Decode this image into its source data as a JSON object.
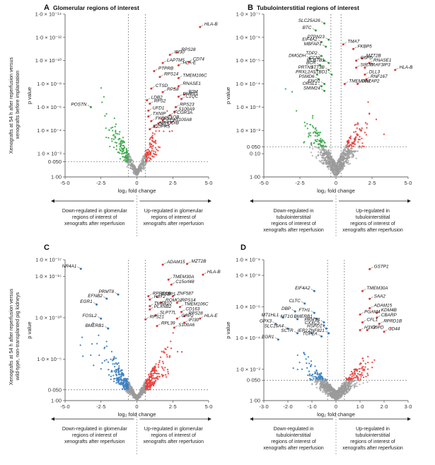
{
  "row_labels": {
    "top": [
      "Xenografts at 54 h after reperfusion versus",
      "xenografts before implantation"
    ],
    "bottom": [
      "Xenografts at 54 h after reperfusion versus",
      "wild-type, non-transplanted pig kidneys"
    ]
  },
  "colors": {
    "down": "#3aa84a",
    "up": "#e8403c",
    "down_blue": "#3b7fc0",
    "ns": "#9a9a9a",
    "line": "#555555"
  },
  "chart_data": [
    {
      "id": "A",
      "type": "scatter",
      "letter": "A",
      "title": "Glomerular regions of interest",
      "xlabel": "log₂ fold change",
      "ylabel": "p value",
      "xlim": [
        -5,
        5
      ],
      "xticks": [
        "-5·0",
        "-2·5",
        "0",
        "2·5",
        "5·0"
      ],
      "ylog_range": [
        0,
        14
      ],
      "yticks": [
        {
          "v": 0,
          "label": "1·00"
        },
        {
          "v": 1.301,
          "label": "0·050"
        },
        {
          "v": 2,
          "label": "1·0 × 10⁻²"
        },
        {
          "v": 4,
          "label": "1·0 × 10⁻⁴"
        },
        {
          "v": 6,
          "label": "1·0 × 10⁻⁶"
        },
        {
          "v": 8,
          "label": "1·0 × 10⁻⁸"
        },
        {
          "v": 10,
          "label": "1·0 × 10⁻¹⁰"
        },
        {
          "v": 12,
          "label": "1·0 × 10⁻¹²"
        },
        {
          "v": 14,
          "label": "1·0 × 10⁻¹⁴"
        }
      ],
      "fc_threshold": 0.58,
      "down_color": "#3aa84a",
      "seed": 11,
      "n_points": 520,
      "spread": 1.05,
      "steep": 2.2,
      "arrow_down": [
        "Down-regulated in glomerular",
        "regions of interest of",
        "xenografts after reperfusion"
      ],
      "arrow_up": [
        "Up-regulated in glomerular",
        "regions of interest of",
        "xenografts after reperfusion"
      ],
      "genes": [
        {
          "g": "HLA-B",
          "x": 4.4,
          "y": 12.9
        },
        {
          "g": "CD74",
          "x": 3.6,
          "y": 9.9
        },
        {
          "g": "RPS28",
          "x": 2.8,
          "y": 10.7
        },
        {
          "g": "IFI30",
          "x": 2.3,
          "y": 10.5
        },
        {
          "g": "LAPTM5",
          "x": 1.8,
          "y": 9.8
        },
        {
          "g": "HLA-E",
          "x": 2.9,
          "y": 9.6
        },
        {
          "g": "PTPRB",
          "x": 1.2,
          "y": 9.1
        },
        {
          "g": "RPS14",
          "x": 1.6,
          "y": 8.6
        },
        {
          "g": "TMEM106C",
          "x": 2.9,
          "y": 8.5
        },
        {
          "g": "CTSD",
          "x": 1.0,
          "y": 7.6
        },
        {
          "g": "RNASE1",
          "x": 2.9,
          "y": 7.8
        },
        {
          "g": "RPS8",
          "x": 1.8,
          "y": 7.3
        },
        {
          "g": "B2M",
          "x": 3.3,
          "y": 7.1
        },
        {
          "g": "DHRS1",
          "x": 2.9,
          "y": 6.9
        },
        {
          "g": "LDB2",
          "x": 0.7,
          "y": 6.6
        },
        {
          "g": "C1QC",
          "x": 3.1,
          "y": 6.7
        },
        {
          "g": "RPS2",
          "x": 0.9,
          "y": 6.3
        },
        {
          "g": "RPS23",
          "x": 2.7,
          "y": 6.0
        },
        {
          "g": "UFD1",
          "x": 0.8,
          "y": 5.7
        },
        {
          "g": "S100A9",
          "x": 2.6,
          "y": 5.6
        },
        {
          "g": "TXNIP",
          "x": 0.8,
          "y": 5.2
        },
        {
          "g": "FCGR3A",
          "x": 2.3,
          "y": 5.3
        },
        {
          "g": "FKBP1A",
          "x": 1.0,
          "y": 4.8
        },
        {
          "g": "C1QB",
          "x": 1.8,
          "y": 4.9
        },
        {
          "g": "CFL1",
          "x": 1.2,
          "y": 4.3
        },
        {
          "g": "CST3",
          "x": 1.5,
          "y": 4.6
        },
        {
          "g": "S100A8",
          "x": 2.4,
          "y": 4.7
        },
        {
          "g": "ARHGDIB",
          "x": 1.2,
          "y": 4.4
        },
        {
          "g": "COPRS",
          "x": 0.9,
          "y": 4.1
        },
        {
          "g": "POSTN",
          "x": -3.2,
          "y": 6.0
        }
      ]
    },
    {
      "id": "B",
      "type": "scatter",
      "letter": "B",
      "title": "Tubulointerstitial regions of interest",
      "xlabel": "log₂ fold change",
      "ylabel": "p value",
      "xlim": [
        -5,
        5
      ],
      "xticks": [
        "-5·0",
        "-2·5",
        "0",
        "2·5",
        "5·0"
      ],
      "ylog_range": [
        0,
        7
      ],
      "yticks": [
        {
          "v": 0,
          "label": "1·00"
        },
        {
          "v": 1,
          "label": "0·10"
        },
        {
          "v": 1.301,
          "label": "0·050"
        },
        {
          "v": 2,
          "label": "1·0 × 10⁻²"
        },
        {
          "v": 3,
          "label": "1·0 × 10⁻³"
        },
        {
          "v": 4,
          "label": "1·0 × 10⁻⁴"
        },
        {
          "v": 5,
          "label": "1·0 × 10⁻⁵"
        },
        {
          "v": 6,
          "label": "1·0 × 10⁻⁶"
        },
        {
          "v": 7,
          "label": "1·0 × 10⁻⁷"
        }
      ],
      "fc_threshold": 0.35,
      "down_color": "#3aa84a",
      "seed": 23,
      "n_points": 900,
      "spread": 0.95,
      "steep": 0.95,
      "arrow_down": [
        "Down-regulated in",
        "tubulointerstitial",
        "regions of interest of",
        "xenografts after reperfusion"
      ],
      "arrow_up": [
        "Up-regulated in",
        "tubulointerstitial",
        "regions of interest of",
        "xenografts after reperfusion"
      ],
      "genes": [
        {
          "g": "BTC",
          "x": -1.4,
          "y": 6.3
        },
        {
          "g": "SLC25A26",
          "x": -0.8,
          "y": 6.6
        },
        {
          "g": "EIF4A2",
          "x": -1.0,
          "y": 5.8
        },
        {
          "g": "MBFAP1",
          "x": -0.7,
          "y": 5.6
        },
        {
          "g": "PTPN23",
          "x": -0.5,
          "y": 5.9
        },
        {
          "g": "TMA7",
          "x": 0.5,
          "y": 5.7
        },
        {
          "g": "DMGDH",
          "x": -1.8,
          "y": 5.1
        },
        {
          "g": "TDP2",
          "x": -1.0,
          "y": 5.2
        },
        {
          "g": "CCNI",
          "x": -0.8,
          "y": 5.0
        },
        {
          "g": "FKBP5",
          "x": 1.2,
          "y": 5.5
        },
        {
          "g": "MZT2B",
          "x": 1.8,
          "y": 5.1
        },
        {
          "g": "BCR",
          "x": -1.1,
          "y": 4.8
        },
        {
          "g": "RCBTB1",
          "x": -0.5,
          "y": 4.9
        },
        {
          "g": "G6PD",
          "x": 1.4,
          "y": 5.0
        },
        {
          "g": "RNASE1",
          "x": 2.3,
          "y": 4.9
        },
        {
          "g": "PRTN3",
          "x": -1.3,
          "y": 4.6
        },
        {
          "g": "STT3B",
          "x": -0.5,
          "y": 4.6
        },
        {
          "g": "SIRT6",
          "x": 1.4,
          "y": 4.7
        },
        {
          "g": "TRAF3IP3",
          "x": 2.0,
          "y": 4.7
        },
        {
          "g": "HLA-B",
          "x": 4.1,
          "y": 4.6
        },
        {
          "g": "PRXL2A",
          "x": -1.3,
          "y": 4.4
        },
        {
          "g": "STBD1",
          "x": -0.3,
          "y": 4.4
        },
        {
          "g": "DLL3",
          "x": 2.0,
          "y": 4.4
        },
        {
          "g": "PSMD6",
          "x": -1.2,
          "y": 4.2
        },
        {
          "g": "ENO1",
          "x": -0.8,
          "y": 4.0
        },
        {
          "g": "RNF167",
          "x": 2.1,
          "y": 4.2
        },
        {
          "g": "ORSL1",
          "x": -1.0,
          "y": 3.9
        },
        {
          "g": "TMEM30A",
          "x": 0.6,
          "y": 4.0
        },
        {
          "g": "DAZAP2",
          "x": 1.5,
          "y": 4.0
        },
        {
          "g": "SMIM24",
          "x": -0.8,
          "y": 3.7
        }
      ]
    },
    {
      "id": "C",
      "type": "scatter",
      "letter": "C",
      "title": "",
      "xlabel": "log₂ fold change",
      "ylabel": "p value",
      "xlim": [
        -5,
        5
      ],
      "xticks": [
        "-5·0",
        "-2·5",
        "0",
        "2·5",
        "5·0"
      ],
      "ylog_range": [
        0,
        17
      ],
      "yticks": [
        {
          "v": 0,
          "label": "1·00"
        },
        {
          "v": 1.301,
          "label": "0·050"
        },
        {
          "v": 5,
          "label": "1·0 × 10⁻⁵"
        },
        {
          "v": 10,
          "label": "1·0 × 10⁻¹⁰"
        },
        {
          "v": 15,
          "label": "1·0 × 10⁻¹⁵"
        },
        {
          "v": 17,
          "label": "1·0 × 10⁻¹⁷"
        }
      ],
      "fc_threshold": 0.58,
      "down_color": "#3b7fc0",
      "seed": 37,
      "n_points": 850,
      "spread": 1.15,
      "steep": 2.4,
      "arrow_down": [
        "Down-regulated in glomerular",
        "regions of interest of",
        "xenografts after reperfusion"
      ],
      "arrow_up": [
        "Up-regulated in glomerular",
        "regions of interest of",
        "xenografts after reperfusion"
      ],
      "genes": [
        {
          "g": "NR4A1",
          "x": -3.9,
          "y": 15.9
        },
        {
          "g": "ADAM15",
          "x": 1.8,
          "y": 16.4
        },
        {
          "g": "MZT2B",
          "x": 3.5,
          "y": 16.5
        },
        {
          "g": "HLA-B",
          "x": 4.6,
          "y": 15.2
        },
        {
          "g": "TMEM30A",
          "x": 2.2,
          "y": 14.6
        },
        {
          "g": "C15orf48",
          "x": 2.4,
          "y": 14.0
        },
        {
          "g": "PRMT8",
          "x": -1.3,
          "y": 12.8
        },
        {
          "g": "RPRD1B",
          "x": 0.8,
          "y": 12.6
        },
        {
          "g": "ZNF587",
          "x": 2.5,
          "y": 12.6
        },
        {
          "g": "PTBP1",
          "x": 1.4,
          "y": 12.5
        },
        {
          "g": "EFNB2",
          "x": -2.1,
          "y": 12.3
        },
        {
          "g": "H3Y2",
          "x": 0.9,
          "y": 12.2
        },
        {
          "g": "ROMO1",
          "x": 1.7,
          "y": 11.8
        },
        {
          "g": "RPS14",
          "x": 2.8,
          "y": 11.8
        },
        {
          "g": "EGR1",
          "x": -2.8,
          "y": 11.6
        },
        {
          "g": "TMSB10",
          "x": 0.9,
          "y": 11.4
        },
        {
          "g": "TMEM106C",
          "x": 3.0,
          "y": 11.3
        },
        {
          "g": "PLXNB2",
          "x": 0.9,
          "y": 11.0
        },
        {
          "g": "CD163",
          "x": 3.1,
          "y": 10.7
        },
        {
          "g": "SLPT7L",
          "x": 1.3,
          "y": 10.3
        },
        {
          "g": "RPS28",
          "x": 3.3,
          "y": 10.2
        },
        {
          "g": "FOSL2",
          "x": -2.5,
          "y": 9.9
        },
        {
          "g": "RPS21",
          "x": 0.6,
          "y": 9.8
        },
        {
          "g": "GRP2",
          "x": 2.8,
          "y": 9.9
        },
        {
          "g": "HLA-E",
          "x": 4.4,
          "y": 9.9
        },
        {
          "g": "IFI30",
          "x": 3.3,
          "y": 9.4
        },
        {
          "g": "RPL39",
          "x": 1.4,
          "y": 9.0
        },
        {
          "g": "S100A6",
          "x": 2.6,
          "y": 8.8
        },
        {
          "g": "BMERB1",
          "x": -2.0,
          "y": 8.7
        }
      ]
    },
    {
      "id": "D",
      "type": "scatter",
      "letter": "D",
      "title": "",
      "xlabel": "log₂ fold change",
      "ylabel": "p value",
      "xlim": [
        -3,
        3
      ],
      "xticks": [
        "-3·0",
        "-2·0",
        "-1·0",
        "0",
        "1·0",
        "2·0",
        "3·0"
      ],
      "ylog_range": [
        0,
        9
      ],
      "yticks": [
        {
          "v": 0,
          "label": "1·00"
        },
        {
          "v": 1.301,
          "label": "0·050"
        },
        {
          "v": 2,
          "label": "1·0 × 10⁻²"
        },
        {
          "v": 4,
          "label": "1·0 × 10⁻⁴"
        },
        {
          "v": 6,
          "label": "1·0 × 10⁻⁶"
        },
        {
          "v": 8,
          "label": "1·0 × 10⁻⁸"
        },
        {
          "v": 9,
          "label": "1·0 × 10⁻⁹"
        }
      ],
      "fc_threshold": 0.35,
      "down_color": "#3b7fc0",
      "seed": 51,
      "n_points": 950,
      "spread": 0.65,
      "steep": 1.5,
      "arrow_down": [
        "Down-regulated in",
        "tubulointerstitial",
        "regions of interest of",
        "xenografts after reperfusion"
      ],
      "arrow_up": [
        "Up-regulated in",
        "tubulointerstitial",
        "regions of interest of",
        "xenografts after reperfusion"
      ],
      "genes": [
        {
          "g": "GSTP1",
          "x": 1.4,
          "y": 8.4
        },
        {
          "g": "EIF4A2",
          "x": -0.9,
          "y": 7.0
        },
        {
          "g": "TMEM30A",
          "x": 1.1,
          "y": 7.0
        },
        {
          "g": "SAA2",
          "x": 1.4,
          "y": 6.5
        },
        {
          "g": "CLTC",
          "x": -1.3,
          "y": 6.2
        },
        {
          "g": "ADAM15",
          "x": 1.4,
          "y": 5.9
        },
        {
          "g": "DBP",
          "x": -1.7,
          "y": 5.7
        },
        {
          "g": "FTH1",
          "x": -0.9,
          "y": 5.6
        },
        {
          "g": "KDM4B",
          "x": 1.7,
          "y": 5.6
        },
        {
          "g": "PGAM4",
          "x": 1.0,
          "y": 5.5
        },
        {
          "g": "CBARP",
          "x": 1.7,
          "y": 5.3
        },
        {
          "g": "MT1HL1",
          "x": -2.2,
          "y": 5.3
        },
        {
          "g": "MT1G",
          "x": -1.6,
          "y": 5.2
        },
        {
          "g": "BMERB1",
          "x": -0.8,
          "y": 5.2
        },
        {
          "g": "PRMT8",
          "x": -0.5,
          "y": 5.0
        },
        {
          "g": "CFL1",
          "x": 1.1,
          "y": 5.0
        },
        {
          "g": "RPRD1B",
          "x": 1.8,
          "y": 4.9
        },
        {
          "g": "GPX3",
          "x": -2.5,
          "y": 4.9
        },
        {
          "g": "CXXC5",
          "x": -0.5,
          "y": 4.8
        },
        {
          "g": "SLC16A4",
          "x": -2.0,
          "y": 4.6
        },
        {
          "g": "HSPD1",
          "x": -0.4,
          "y": 4.6
        },
        {
          "g": "H3Y2",
          "x": 1.0,
          "y": 4.5
        },
        {
          "g": "G6PD",
          "x": 1.3,
          "y": 4.5
        },
        {
          "g": "CD44",
          "x": 2.0,
          "y": 4.4
        },
        {
          "g": "SCTR",
          "x": -1.6,
          "y": 4.3
        },
        {
          "g": "IER2",
          "x": -1.0,
          "y": 4.3
        },
        {
          "g": "ZNF821",
          "x": -0.3,
          "y": 4.3
        },
        {
          "g": "TOP2A",
          "x": -0.6,
          "y": 4.1
        },
        {
          "g": "EGR1",
          "x": -2.4,
          "y": 3.9
        }
      ]
    }
  ]
}
